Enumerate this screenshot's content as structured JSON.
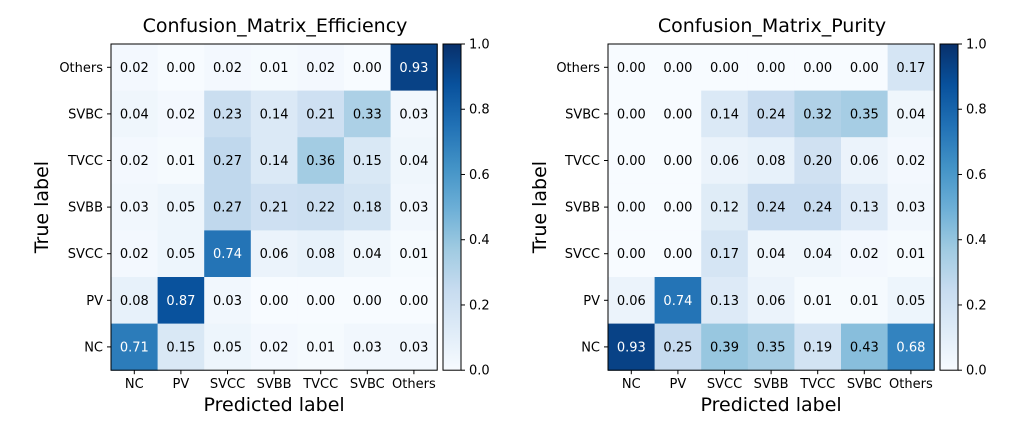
{
  "chart_data": [
    {
      "type": "heatmap",
      "title": "Confusion_Matrix_Efficiency",
      "xlabel": "Predicted label",
      "ylabel": "True label",
      "x_categories": [
        "NC",
        "PV",
        "SVCC",
        "SVBB",
        "TVCC",
        "SVBC",
        "Others"
      ],
      "y_categories": [
        "Others",
        "SVBC",
        "TVCC",
        "SVBB",
        "SVCC",
        "PV",
        "NC"
      ],
      "values": [
        [
          "0.02",
          "0.00",
          "0.02",
          "0.01",
          "0.02",
          "0.00",
          "0.93"
        ],
        [
          "0.04",
          "0.02",
          "0.23",
          "0.14",
          "0.21",
          "0.33",
          "0.03"
        ],
        [
          "0.02",
          "0.01",
          "0.27",
          "0.14",
          "0.36",
          "0.15",
          "0.04"
        ],
        [
          "0.03",
          "0.05",
          "0.27",
          "0.21",
          "0.22",
          "0.18",
          "0.03"
        ],
        [
          "0.02",
          "0.05",
          "0.74",
          "0.06",
          "0.08",
          "0.04",
          "0.01"
        ],
        [
          "0.08",
          "0.87",
          "0.03",
          "0.00",
          "0.00",
          "0.00",
          "0.00"
        ],
        [
          "0.71",
          "0.15",
          "0.05",
          "0.02",
          "0.01",
          "0.03",
          "0.03"
        ]
      ],
      "colorbar": {
        "range": [
          0.0,
          1.0
        ],
        "ticks": [
          "0.0",
          "0.2",
          "0.4",
          "0.6",
          "0.8",
          "1.0"
        ],
        "colormap": "Blues"
      },
      "grid": false
    },
    {
      "type": "heatmap",
      "title": "Confusion_Matrix_Purity",
      "xlabel": "Predicted label",
      "ylabel": "True label",
      "x_categories": [
        "NC",
        "PV",
        "SVCC",
        "SVBB",
        "TVCC",
        "SVBC",
        "Others"
      ],
      "y_categories": [
        "Others",
        "SVBC",
        "TVCC",
        "SVBB",
        "SVCC",
        "PV",
        "NC"
      ],
      "values": [
        [
          "0.00",
          "0.00",
          "0.00",
          "0.00",
          "0.00",
          "0.00",
          "0.17"
        ],
        [
          "0.00",
          "0.00",
          "0.14",
          "0.24",
          "0.32",
          "0.35",
          "0.04"
        ],
        [
          "0.00",
          "0.00",
          "0.06",
          "0.08",
          "0.20",
          "0.06",
          "0.02"
        ],
        [
          "0.00",
          "0.00",
          "0.12",
          "0.24",
          "0.24",
          "0.13",
          "0.03"
        ],
        [
          "0.00",
          "0.00",
          "0.17",
          "0.04",
          "0.04",
          "0.02",
          "0.01"
        ],
        [
          "0.06",
          "0.74",
          "0.13",
          "0.06",
          "0.01",
          "0.01",
          "0.05"
        ],
        [
          "0.93",
          "0.25",
          "0.39",
          "0.35",
          "0.19",
          "0.43",
          "0.68"
        ]
      ],
      "colorbar": {
        "range": [
          0.0,
          1.0
        ],
        "ticks": [
          "0.0",
          "0.2",
          "0.4",
          "0.6",
          "0.8",
          "1.0"
        ],
        "colormap": "Blues"
      },
      "grid": false
    }
  ]
}
